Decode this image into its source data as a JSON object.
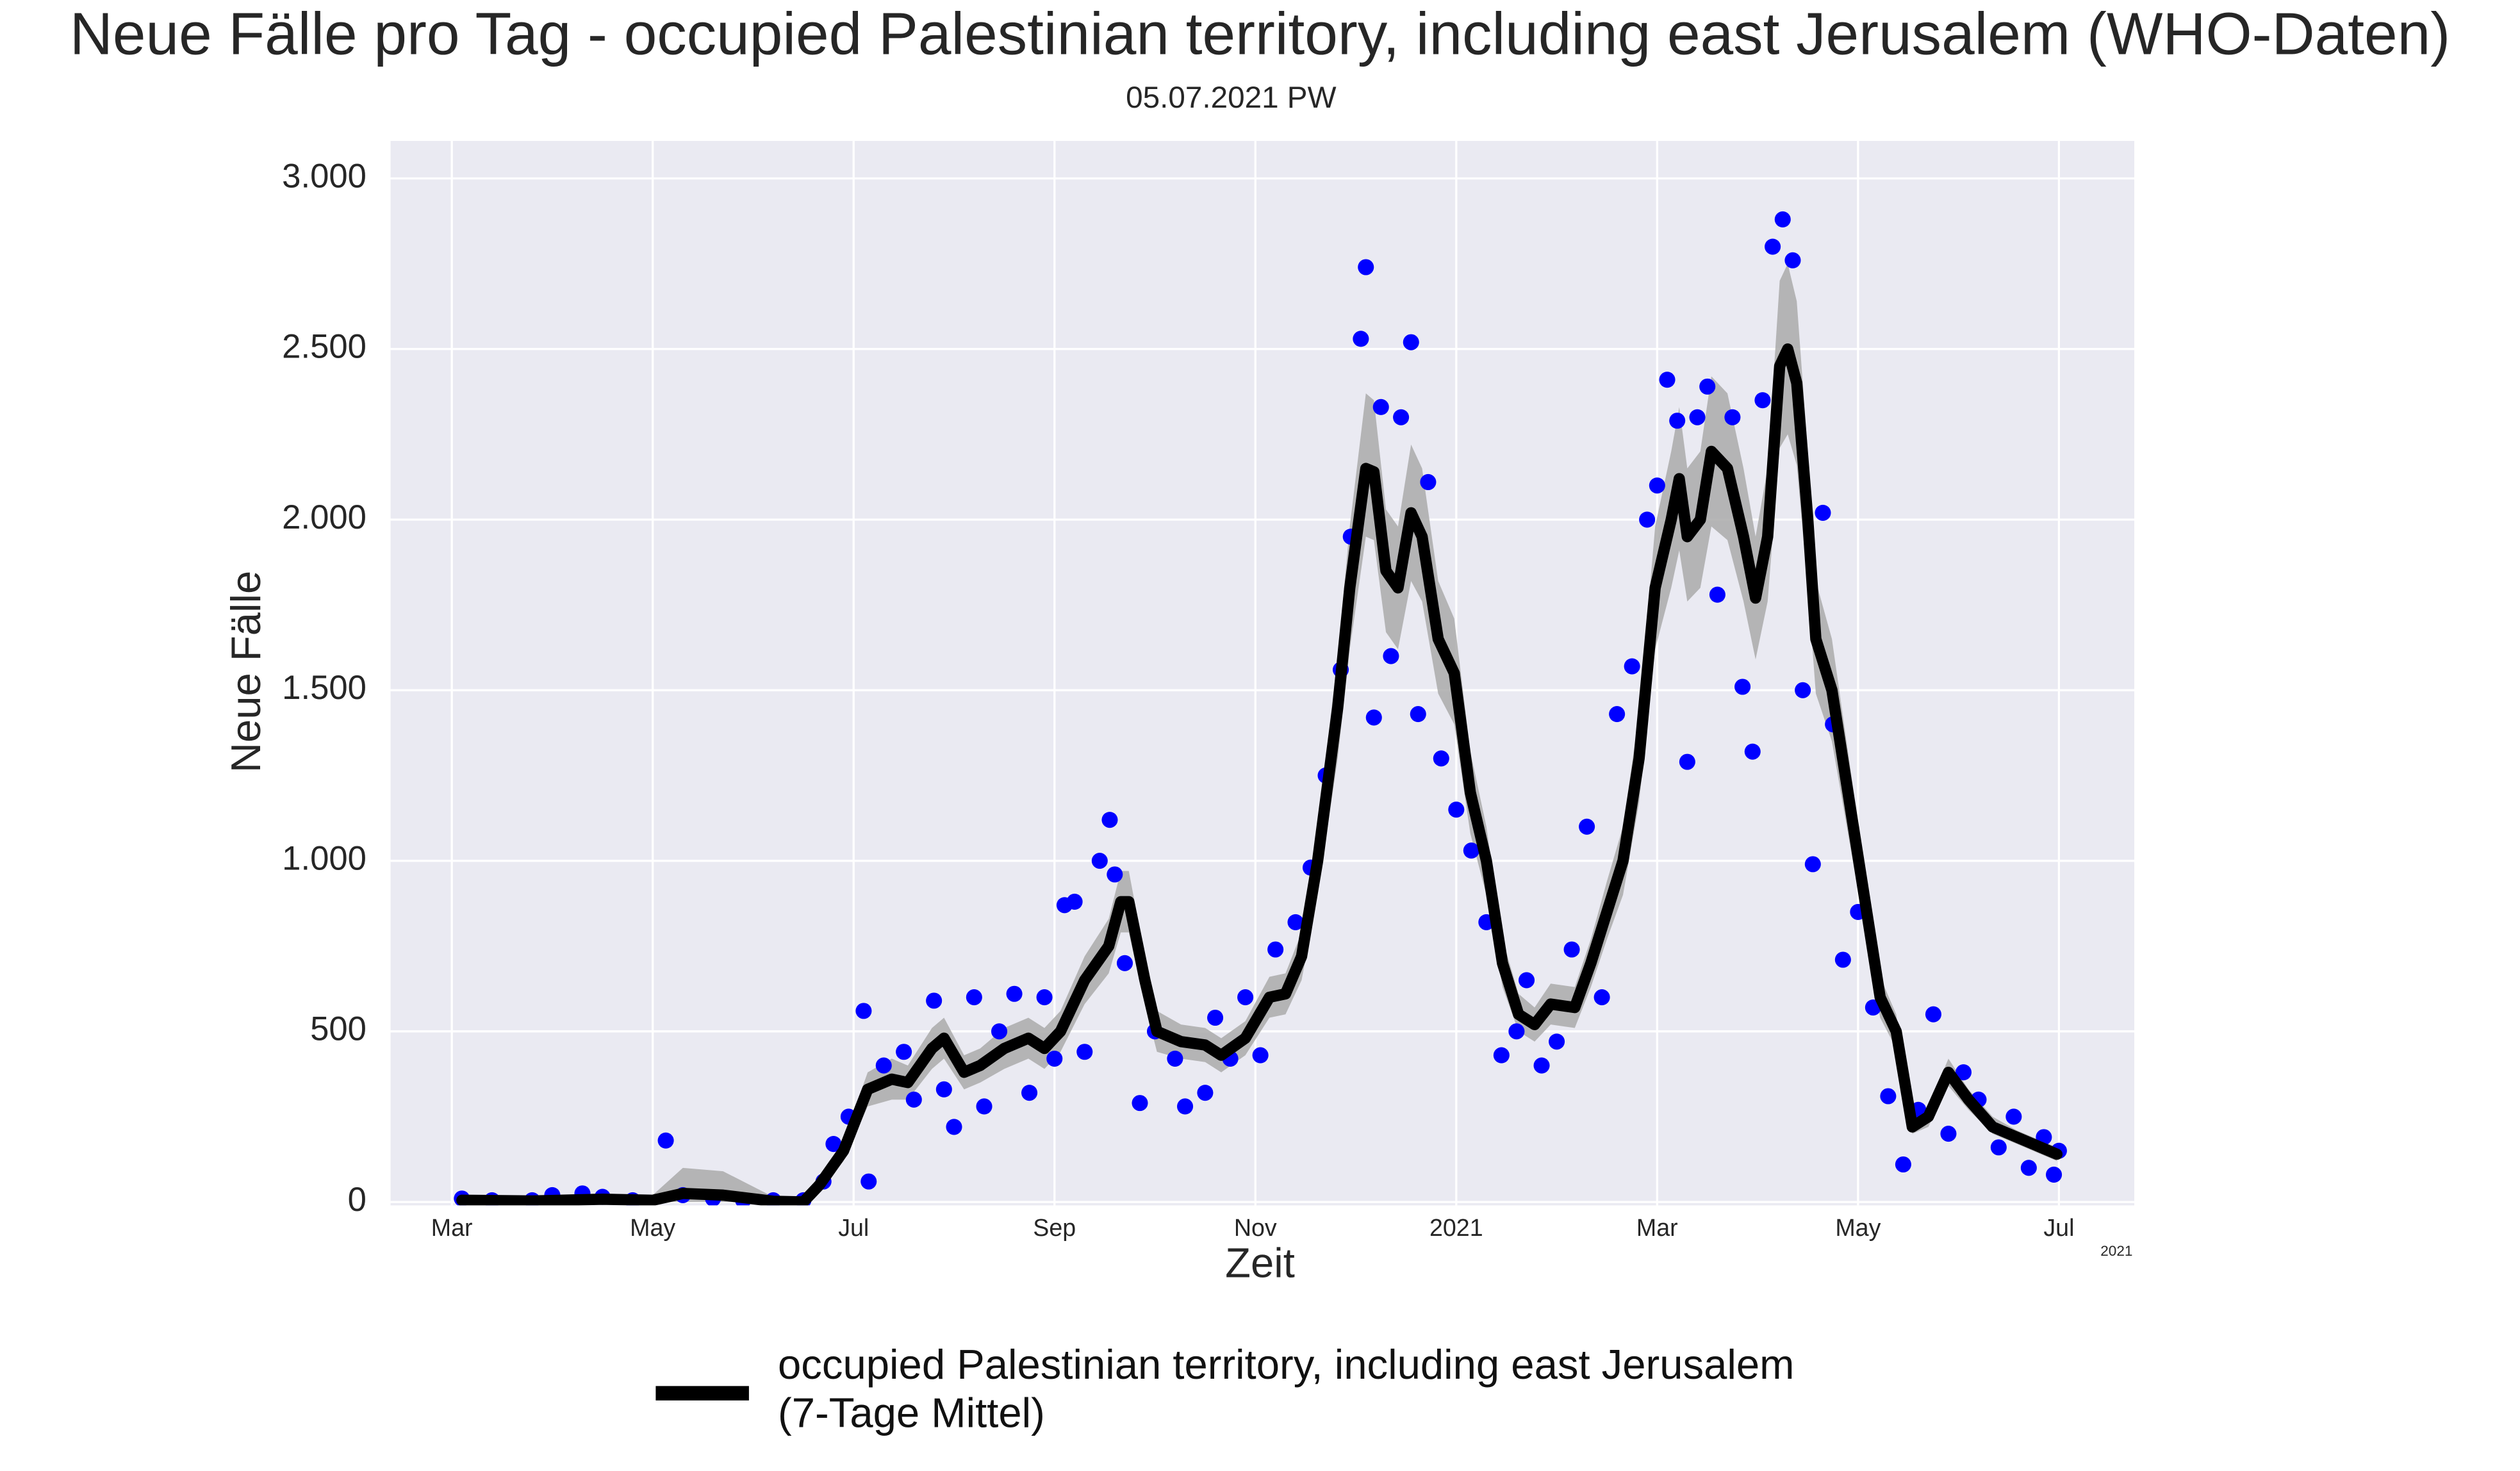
{
  "chart_data": {
    "type": "line",
    "title": "Neue Fälle pro Tag - occupied Palestinian territory, including east Jerusalem (WHO-Daten)",
    "subtitle": "05.07.2021 PW",
    "xlabel": "Zeit",
    "ylabel": "Neue Fälle",
    "x_offset_label": "2021",
    "xlim": [
      1.39,
      18.75
    ],
    "ylim": [
      -10,
      3110
    ],
    "xticks": [
      {
        "value": 2,
        "label": "Mar"
      },
      {
        "value": 4,
        "label": "May"
      },
      {
        "value": 6,
        "label": "Jul"
      },
      {
        "value": 8,
        "label": "Sep"
      },
      {
        "value": 10,
        "label": "Nov"
      },
      {
        "value": 12,
        "label": "2021"
      },
      {
        "value": 14,
        "label": "Mar"
      },
      {
        "value": 16,
        "label": "May"
      },
      {
        "value": 18,
        "label": "Jul"
      }
    ],
    "yticks": [
      0,
      500,
      {
        "value": 1000,
        "label": "1.000"
      },
      {
        "value": 1500,
        "label": "1.500"
      },
      {
        "value": 2000,
        "label": "2.000"
      },
      {
        "value": 2500,
        "label": "2.500"
      },
      {
        "value": 3000,
        "label": "3.000"
      }
    ],
    "grid": true,
    "background": "#eaeaf2",
    "legend": "bottom",
    "series": [
      {
        "name": "occupied Palestinian territory, including east Jerusalem\n(7-Tage Mittel)",
        "color": "#000000",
        "band_color": "#aaaaaa",
        "x": [
          2.1,
          2.8,
          3.5,
          4.0,
          4.3,
          4.7,
          5.2,
          5.5,
          5.66,
          5.9,
          6.14,
          6.38,
          6.54,
          6.78,
          6.9,
          7.1,
          7.26,
          7.5,
          7.74,
          7.9,
          8.06,
          8.3,
          8.54,
          8.66,
          8.74,
          8.9,
          9.02,
          9.26,
          9.5,
          9.66,
          9.9,
          10.14,
          10.3,
          10.46,
          10.62,
          10.82,
          10.94,
          11.1,
          11.18,
          11.3,
          11.42,
          11.55,
          11.66,
          11.82,
          11.98,
          12.14,
          12.3,
          12.46,
          12.62,
          12.78,
          12.94,
          13.18,
          13.34,
          13.5,
          13.66,
          13.82,
          13.98,
          14.14,
          14.22,
          14.3,
          14.43,
          14.54,
          14.7,
          14.86,
          14.98,
          15.1,
          15.22,
          15.3,
          15.39,
          15.5,
          15.58,
          15.74,
          15.9,
          16.06,
          16.22,
          16.38,
          16.54,
          16.7,
          16.9,
          17.1,
          17.34,
          17.58,
          17.82,
          17.98
        ],
        "values": [
          5,
          3,
          8,
          5,
          25,
          20,
          2,
          0,
          50,
          150,
          330,
          360,
          350,
          450,
          480,
          380,
          400,
          450,
          480,
          450,
          500,
          650,
          750,
          880,
          880,
          650,
          500,
          470,
          460,
          430,
          480,
          600,
          610,
          720,
          1000,
          1450,
          1800,
          2150,
          2140,
          1850,
          1800,
          2020,
          1950,
          1650,
          1550,
          1200,
          1000,
          700,
          550,
          520,
          580,
          570,
          700,
          850,
          1000,
          1300,
          1800,
          2000,
          2120,
          1950,
          2000,
          2200,
          2150,
          1950,
          1770,
          1950,
          2450,
          2500,
          2400,
          2000,
          1650,
          1500,
          1200,
          900,
          600,
          500,
          220,
          250,
          380,
          300,
          220,
          190,
          160,
          140
        ],
        "band_lower": [
          0,
          0,
          0,
          0,
          0,
          0,
          0,
          0,
          30,
          120,
          280,
          300,
          300,
          390,
          420,
          330,
          350,
          390,
          420,
          390,
          440,
          580,
          670,
          790,
          790,
          580,
          440,
          420,
          410,
          380,
          430,
          540,
          550,
          650,
          900,
          1300,
          1620,
          1950,
          1940,
          1670,
          1620,
          1820,
          1760,
          1490,
          1400,
          1080,
          900,
          630,
          500,
          470,
          520,
          510,
          630,
          770,
          900,
          1170,
          1620,
          1800,
          1910,
          1760,
          1800,
          1980,
          1940,
          1760,
          1590,
          1760,
          2210,
          2250,
          2160,
          1800,
          1490,
          1350,
          1080,
          810,
          540,
          450,
          200,
          220,
          340,
          270,
          200,
          170,
          140,
          120
        ],
        "band_upper": [
          20,
          15,
          25,
          20,
          100,
          90,
          15,
          10,
          70,
          180,
          380,
          420,
          400,
          510,
          540,
          430,
          450,
          510,
          540,
          510,
          560,
          720,
          830,
          970,
          970,
          720,
          560,
          520,
          510,
          480,
          530,
          660,
          670,
          790,
          1100,
          1600,
          1980,
          2370,
          2350,
          2030,
          1980,
          2220,
          2150,
          1820,
          1710,
          1320,
          1100,
          770,
          610,
          570,
          640,
          630,
          770,
          940,
          1100,
          1430,
          1980,
          2200,
          2330,
          2150,
          2200,
          2420,
          2370,
          2150,
          1950,
          2150,
          2700,
          2750,
          2640,
          2200,
          1820,
          1650,
          1320,
          990,
          660,
          550,
          250,
          280,
          420,
          330,
          250,
          210,
          180,
          160
        ]
      }
    ],
    "points": {
      "color": "#0000ff",
      "x": [
        2.1,
        2.4,
        2.8,
        3.0,
        3.3,
        3.5,
        3.8,
        4.13,
        4.3,
        4.6,
        4.9,
        5.2,
        5.5,
        5.7,
        5.8,
        5.95,
        6.1,
        6.15,
        6.3,
        6.5,
        6.6,
        6.8,
        6.9,
        7.0,
        7.2,
        7.3,
        7.45,
        7.6,
        7.75,
        7.9,
        8.0,
        8.1,
        8.2,
        8.3,
        8.45,
        8.55,
        8.6,
        8.7,
        8.85,
        9.0,
        9.2,
        9.3,
        9.5,
        9.6,
        9.75,
        9.9,
        10.05,
        10.2,
        10.4,
        10.55,
        10.7,
        10.85,
        10.95,
        11.05,
        11.1,
        11.18,
        11.25,
        11.35,
        11.45,
        11.55,
        11.62,
        11.72,
        11.85,
        12.0,
        12.15,
        12.3,
        12.45,
        12.6,
        12.7,
        12.85,
        13.0,
        13.15,
        13.3,
        13.45,
        13.6,
        13.75,
        13.9,
        14.0,
        14.1,
        14.2,
        14.3,
        14.4,
        14.5,
        14.6,
        14.75,
        14.85,
        14.95,
        15.05,
        15.15,
        15.25,
        15.35,
        15.45,
        15.55,
        15.65,
        15.75,
        15.85,
        16.0,
        16.15,
        16.3,
        16.45,
        16.6,
        16.75,
        16.9,
        17.05,
        17.2,
        17.4,
        17.55,
        17.7,
        17.85,
        17.95,
        18.0
      ],
      "values": [
        10,
        5,
        5,
        20,
        25,
        15,
        5,
        180,
        20,
        10,
        5,
        5,
        5,
        60,
        170,
        250,
        560,
        60,
        400,
        440,
        300,
        590,
        330,
        220,
        600,
        280,
        500,
        610,
        320,
        600,
        420,
        870,
        880,
        440,
        1000,
        1120,
        960,
        700,
        290,
        500,
        420,
        280,
        320,
        540,
        420,
        600,
        430,
        740,
        820,
        980,
        1250,
        1560,
        1950,
        2530,
        2740,
        1420,
        2330,
        1600,
        2300,
        2520,
        1430,
        2110,
        1300,
        1150,
        1030,
        820,
        430,
        500,
        650,
        400,
        470,
        740,
        1100,
        600,
        1430,
        1570,
        2000,
        2100,
        2410,
        2290,
        1290,
        2300,
        2390,
        1780,
        2300,
        1510,
        1320,
        2350,
        2800,
        2880,
        2760,
        1500,
        990,
        2020,
        1400,
        710,
        850,
        570,
        310,
        110,
        270,
        550,
        200,
        380,
        300,
        160,
        250,
        100,
        190,
        80,
        150
      ]
    }
  }
}
